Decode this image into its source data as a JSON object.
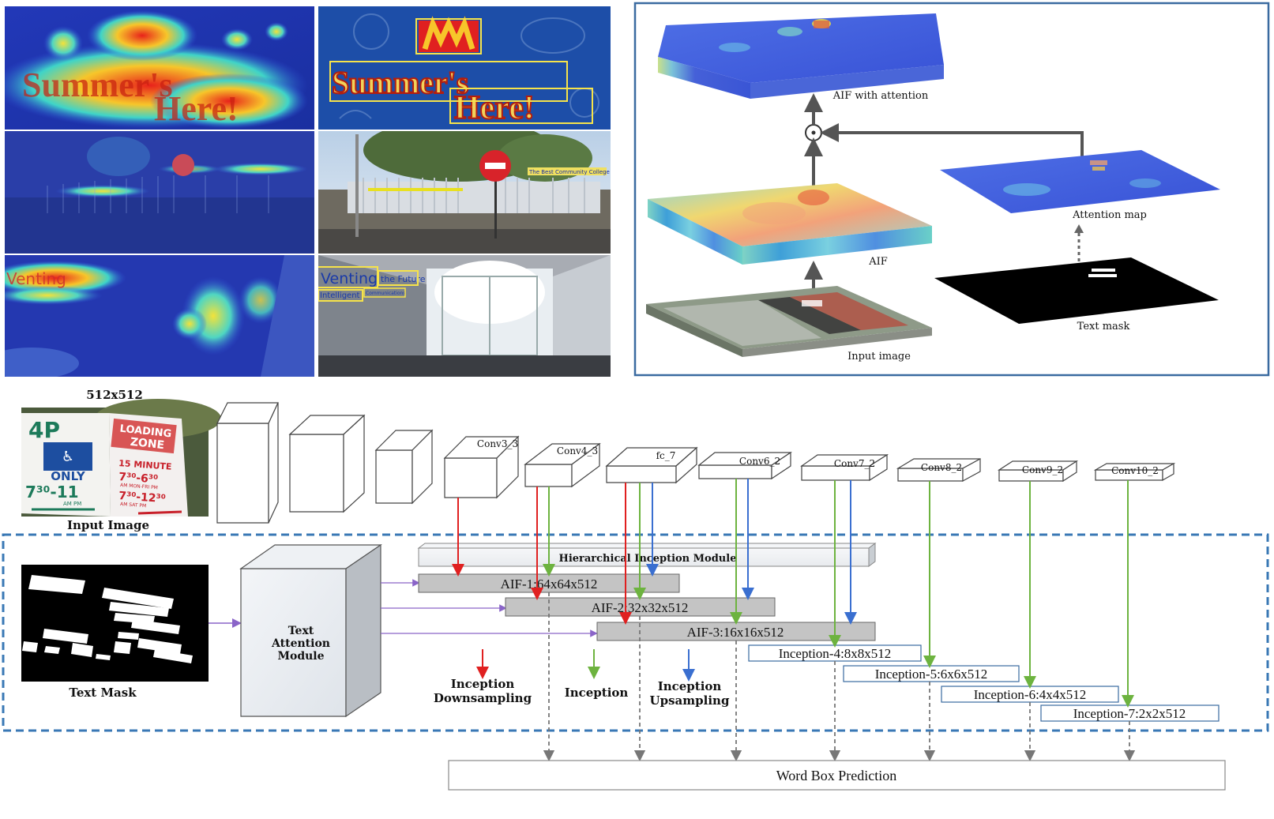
{
  "attention_panel": {
    "aif_attention": "AIF with attention",
    "aif": "AIF",
    "attention_map": "Attention map",
    "input_image": "Input image",
    "text_mask": "Text mask",
    "multiply_symbol": "⊙"
  },
  "photos": {
    "sign_line1": "Summer's",
    "sign_line2": "Here!",
    "wall_word_1": "Venting",
    "wall_word_2": "the Future",
    "wall_word_3": "Intelligent",
    "wall_word_4": "Communications",
    "board_text": "The Best Community College"
  },
  "network": {
    "input_size": "512x512",
    "input_caption": "Input Image",
    "layers": [
      "Conv3_3",
      "Conv4_3",
      "fc_7",
      "Conv6_2",
      "Conv7_2",
      "Conv8_2",
      "Conv9_2",
      "Conv10_2"
    ],
    "hierarchical": "Hierarchical Inception Module",
    "aif_blocks": [
      "AIF-1:64x64x512",
      "AIF-2:32x32x512",
      "AIF-3:16x16x512"
    ],
    "inception_blocks": [
      "Inception-4:8x8x512",
      "Inception-5:6x6x512",
      "Inception-6:4x4x512",
      "Inception-7:2x2x512"
    ],
    "text_attention": [
      "Text",
      "Attention",
      "Module"
    ],
    "text_mask_caption": "Text Mask",
    "legend": {
      "down_1": "Inception",
      "down_2": "Downsampling",
      "inception": "Inception",
      "up_1": "Inception",
      "up_2": "Upsampling"
    },
    "word_box": "Word Box Prediction"
  },
  "sign": {
    "p4": "4P",
    "only": "ONLY",
    "time_left": "7³⁰-11",
    "time_left_ampm": "AM PM",
    "loading": "LOADING",
    "zone": "ZONE",
    "minute": "15 MINUTE",
    "time1": "7³⁰-6³⁰",
    "day1": "AM MON-FRI PM",
    "time2": "7³⁰-12³⁰",
    "day2": "AM SAT PM"
  },
  "colors": {
    "red_arrow": "#e02020",
    "green_arrow": "#6db33f",
    "blue_arrow": "#3a6fd0",
    "dash_border": "#3a78b5",
    "grey_box": "#c4c4c4",
    "panel_border": "#3a6aa0"
  }
}
